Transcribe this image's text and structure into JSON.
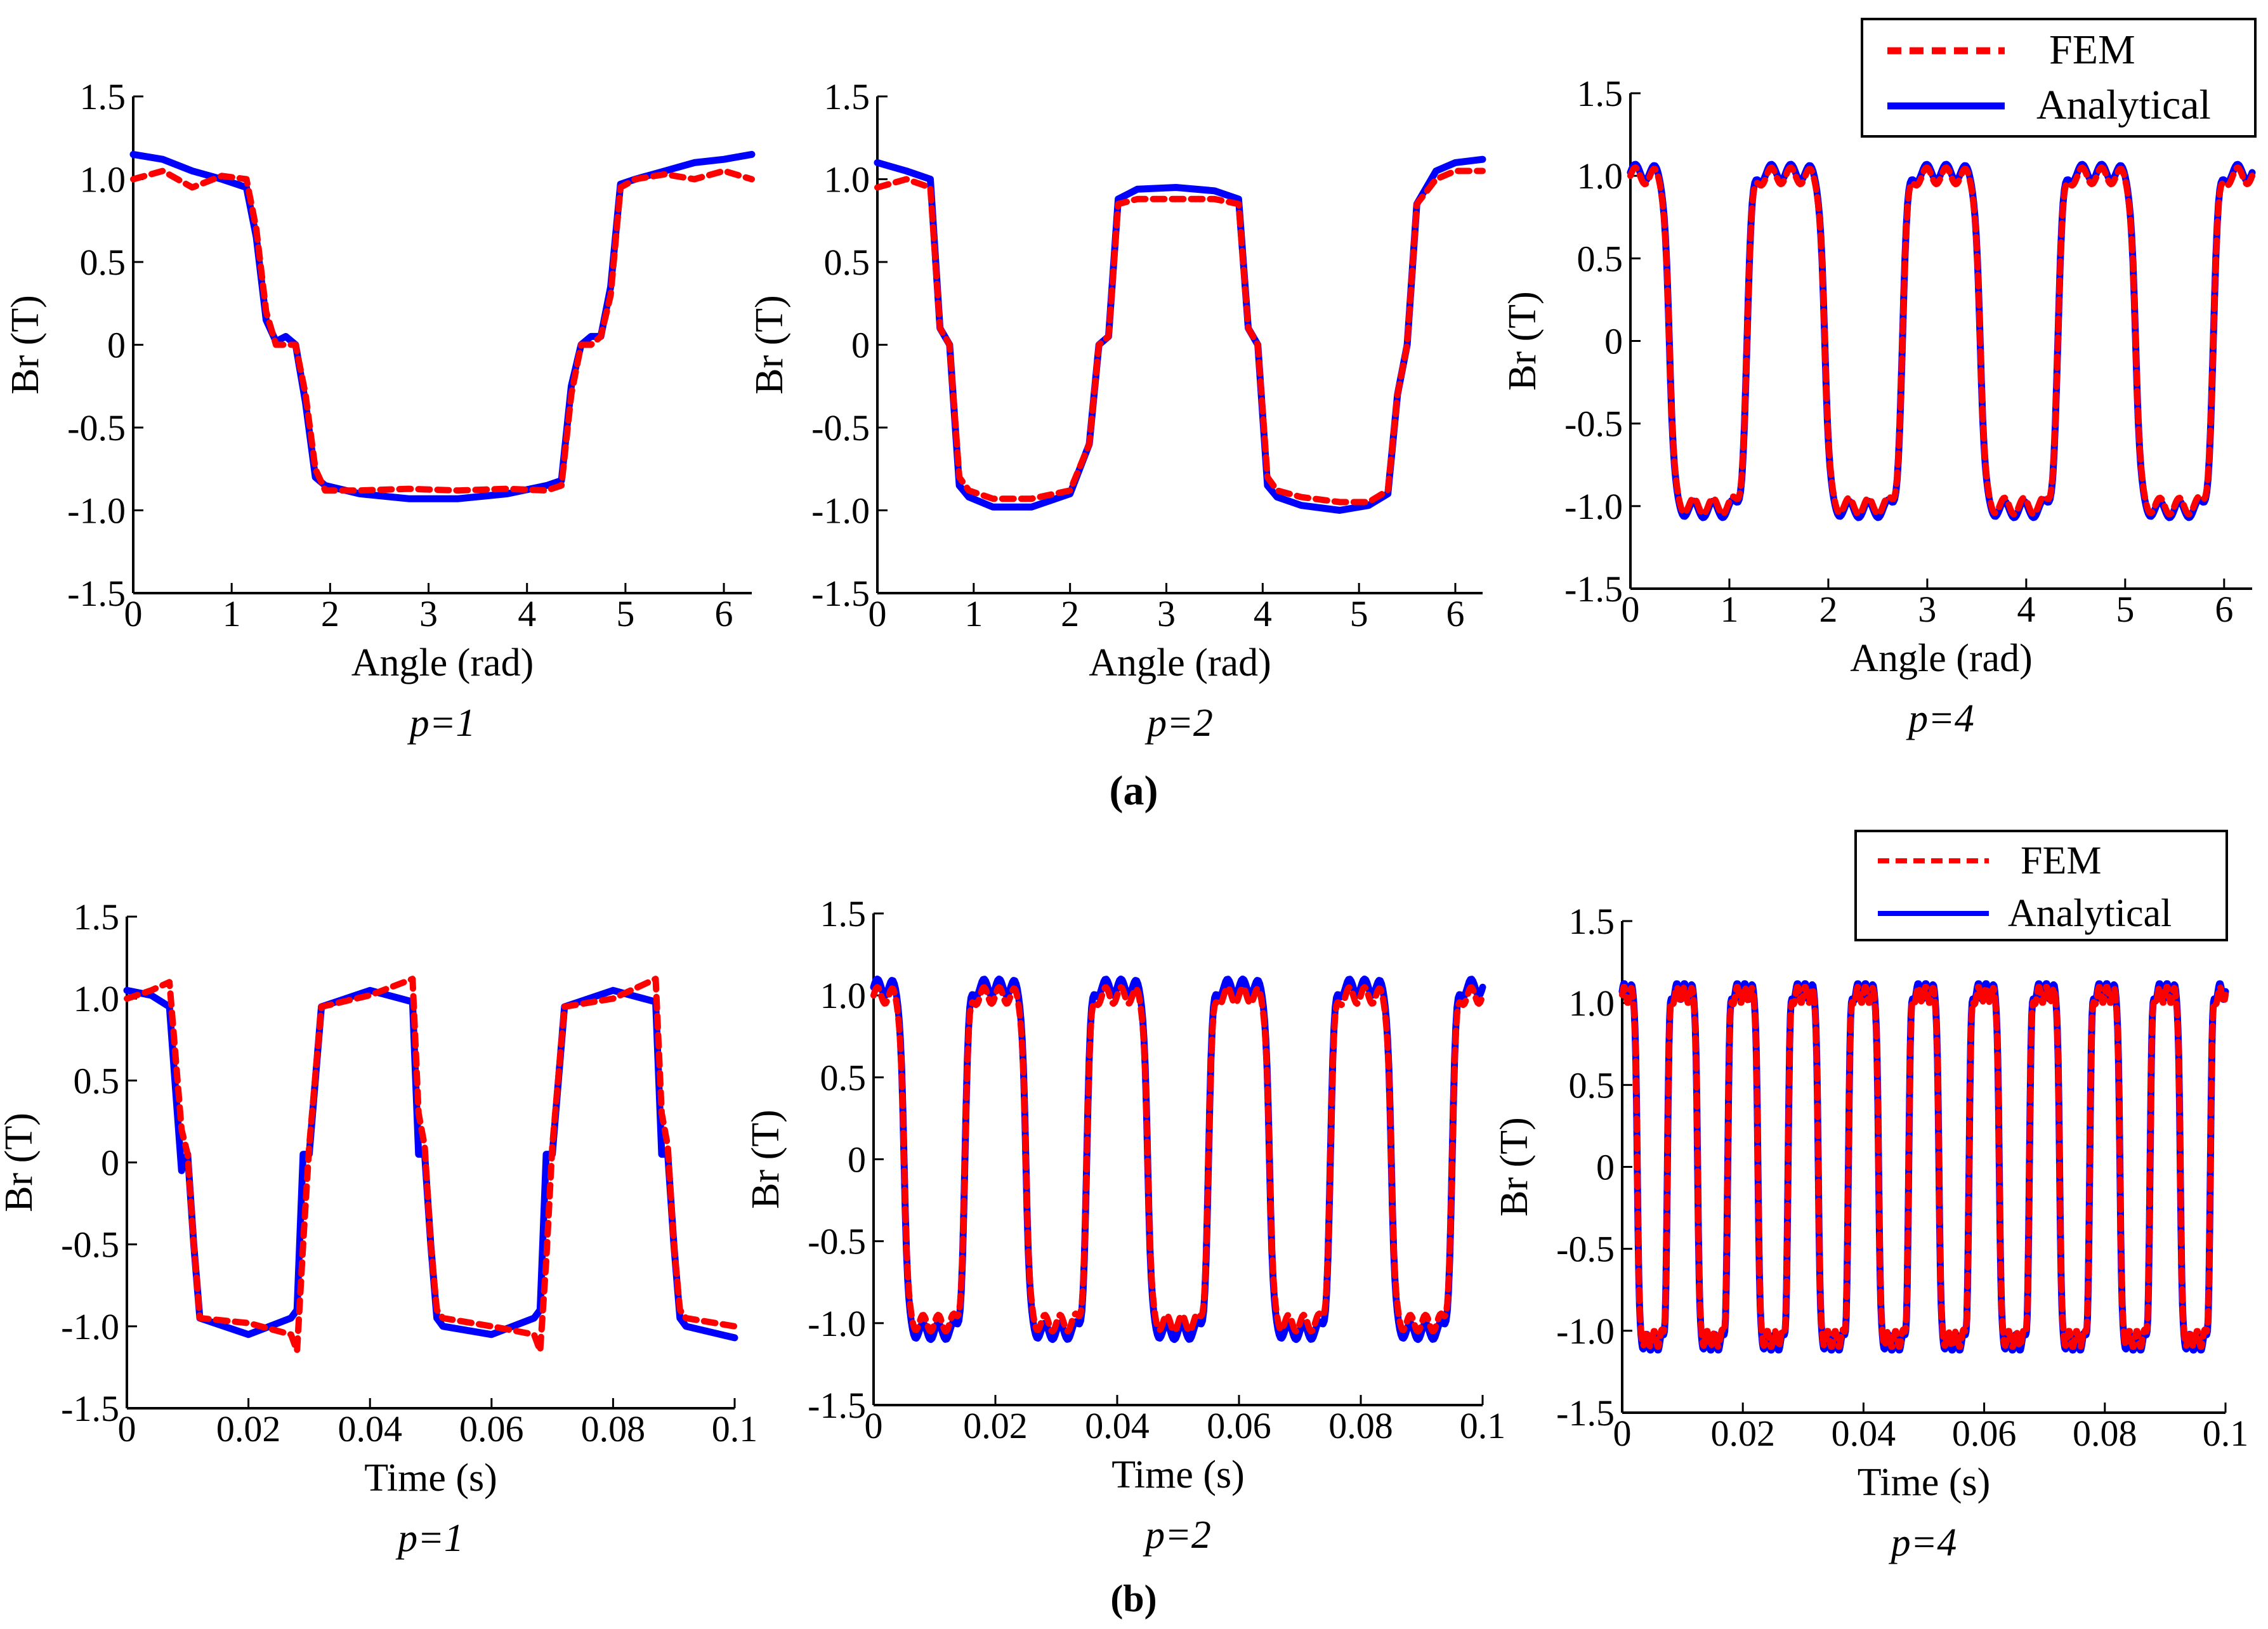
{
  "colors": {
    "fem": "#ff0000",
    "analytical": "#0000ff",
    "axis": "#000000"
  },
  "legend": {
    "fem": "FEM",
    "analytical": "Analytical"
  },
  "row_labels": [
    "(a)",
    "(b)"
  ],
  "chart_data": [
    {
      "type": "line",
      "title": "",
      "subplot_label": "p=1",
      "xlabel": "Angle (rad)",
      "ylabel": "Br (T)",
      "xlim": [
        0,
        6.2832
      ],
      "ylim": [
        -1.5,
        1.5
      ],
      "xticks": [
        0,
        1,
        2,
        3,
        4,
        5,
        6
      ],
      "yticks": [
        -1.5,
        -1.0,
        -0.5,
        0,
        0.5,
        1.0,
        1.5
      ],
      "ytick_labels": [
        "-1.5",
        "-1.0",
        "-0.5",
        "0",
        "0.5",
        "1.0",
        "1.5"
      ],
      "legend_position": "none",
      "series": [
        {
          "name": "FEM",
          "style": "dashed",
          "x": [
            0,
            0.3,
            0.6,
            0.9,
            1.15,
            1.25,
            1.35,
            1.45,
            1.55,
            1.65,
            1.75,
            1.85,
            1.95,
            2.3,
            2.8,
            3.3,
            3.8,
            4.2,
            4.35,
            4.45,
            4.55,
            4.65,
            4.75,
            4.85,
            4.95,
            5.1,
            5.4,
            5.7,
            6.0,
            6.2832
          ],
          "y": [
            1.0,
            1.05,
            0.95,
            1.02,
            1.0,
            0.7,
            0.2,
            0.0,
            0.0,
            0.0,
            -0.3,
            -0.75,
            -0.88,
            -0.88,
            -0.87,
            -0.88,
            -0.87,
            -0.88,
            -0.85,
            -0.3,
            0.0,
            0.0,
            0.05,
            0.3,
            0.95,
            1.0,
            1.03,
            1.0,
            1.05,
            1.0
          ]
        },
        {
          "name": "Analytical",
          "style": "solid",
          "x": [
            0,
            0.3,
            0.6,
            0.9,
            1.15,
            1.25,
            1.35,
            1.45,
            1.55,
            1.65,
            1.75,
            1.85,
            1.95,
            2.3,
            2.8,
            3.3,
            3.8,
            4.2,
            4.35,
            4.45,
            4.55,
            4.65,
            4.75,
            4.85,
            4.95,
            5.1,
            5.4,
            5.7,
            6.0,
            6.2832
          ],
          "y": [
            1.15,
            1.12,
            1.05,
            1.0,
            0.95,
            0.65,
            0.15,
            0.02,
            0.05,
            0.0,
            -0.35,
            -0.8,
            -0.85,
            -0.9,
            -0.93,
            -0.93,
            -0.9,
            -0.85,
            -0.82,
            -0.25,
            0.0,
            0.05,
            0.05,
            0.35,
            0.97,
            1.0,
            1.05,
            1.1,
            1.12,
            1.15
          ]
        }
      ]
    },
    {
      "type": "line",
      "title": "",
      "subplot_label": "p=2",
      "xlabel": "Angle (rad)",
      "ylabel": "Br (T)",
      "xlim": [
        0,
        6.2832
      ],
      "ylim": [
        -1.5,
        1.5
      ],
      "xticks": [
        0,
        1,
        2,
        3,
        4,
        5,
        6
      ],
      "yticks": [
        -1.5,
        -1.0,
        -0.5,
        0,
        0.5,
        1.0,
        1.5
      ],
      "ytick_labels": [
        "-1.5",
        "-1.0",
        "-0.5",
        "0",
        "0.5",
        "1.0",
        "1.5"
      ],
      "legend_position": "none",
      "series": [
        {
          "name": "FEM",
          "style": "dashed",
          "x": [
            0,
            0.3,
            0.55,
            0.65,
            0.75,
            0.85,
            0.95,
            1.2,
            1.6,
            2.0,
            2.2,
            2.3,
            2.4,
            2.5,
            2.7,
            3.1,
            3.5,
            3.75,
            3.85,
            3.95,
            4.05,
            4.15,
            4.4,
            4.8,
            5.1,
            5.3,
            5.4,
            5.5,
            5.6,
            5.8,
            6.0,
            6.2832
          ],
          "y": [
            0.95,
            1.0,
            0.95,
            0.1,
            0.0,
            -0.8,
            -0.88,
            -0.93,
            -0.93,
            -0.88,
            -0.6,
            0.0,
            0.05,
            0.85,
            0.88,
            0.88,
            0.88,
            0.85,
            0.1,
            0.0,
            -0.8,
            -0.88,
            -0.92,
            -0.95,
            -0.95,
            -0.88,
            -0.3,
            0.0,
            0.85,
            1.0,
            1.05,
            1.05
          ]
        },
        {
          "name": "Analytical",
          "style": "solid",
          "x": [
            0,
            0.3,
            0.55,
            0.65,
            0.75,
            0.85,
            0.95,
            1.2,
            1.6,
            2.0,
            2.2,
            2.3,
            2.4,
            2.5,
            2.7,
            3.1,
            3.5,
            3.75,
            3.85,
            3.95,
            4.05,
            4.15,
            4.4,
            4.8,
            5.1,
            5.3,
            5.4,
            5.5,
            5.6,
            5.8,
            6.0,
            6.2832
          ],
          "y": [
            1.1,
            1.05,
            1.0,
            0.1,
            0.0,
            -0.85,
            -0.92,
            -0.98,
            -0.98,
            -0.9,
            -0.6,
            0.0,
            0.05,
            0.88,
            0.94,
            0.95,
            0.93,
            0.88,
            0.1,
            0.0,
            -0.85,
            -0.92,
            -0.97,
            -1.0,
            -0.97,
            -0.9,
            -0.3,
            0.0,
            0.85,
            1.05,
            1.1,
            1.12
          ]
        }
      ]
    },
    {
      "type": "line",
      "title": "",
      "subplot_label": "p=4",
      "xlabel": "Angle (rad)",
      "ylabel": "Br (T)",
      "xlim": [
        0,
        6.2832
      ],
      "ylim": [
        -1.5,
        1.5
      ],
      "xticks": [
        0,
        1,
        2,
        3,
        4,
        5,
        6
      ],
      "yticks": [
        -1.5,
        -1.0,
        -0.5,
        0,
        0.5,
        1.0,
        1.5
      ],
      "ytick_labels": [
        "-1.5",
        "-1.0",
        "-0.5",
        "0",
        "0.5",
        "1.0",
        "1.5"
      ],
      "legend_position": "top-right",
      "series": [
        {
          "name": "FEM",
          "style": "dashed",
          "shape": "square-wave",
          "periods": 4,
          "amplitude": 1.0,
          "samples": 480
        },
        {
          "name": "Analytical",
          "style": "solid",
          "shape": "square-wave",
          "periods": 4,
          "amplitude": 1.02,
          "samples": 480
        }
      ]
    },
    {
      "type": "line",
      "title": "",
      "subplot_label": "p=1",
      "xlabel": "Time (s)",
      "ylabel": "Br (T)",
      "xlim": [
        0,
        0.1
      ],
      "ylim": [
        -1.5,
        1.5
      ],
      "xticks": [
        0,
        0.02,
        0.04,
        0.06,
        0.08,
        0.1
      ],
      "xtick_labels": [
        "0",
        "0.02",
        "0.04",
        "0.06",
        "0.08",
        "0.1"
      ],
      "yticks": [
        -1.5,
        -1.0,
        -0.5,
        0,
        0.5,
        1.0,
        1.5
      ],
      "ytick_labels": [
        "-1.5",
        "-1.0",
        "-0.5",
        "0",
        "0.5",
        "1.0",
        "1.5"
      ],
      "legend_position": "none",
      "series": [
        {
          "name": "FEM",
          "style": "dashed",
          "x": [
            0,
            0.004,
            0.007,
            0.009,
            0.01,
            0.011,
            0.012,
            0.02,
            0.027,
            0.028,
            0.029,
            0.03,
            0.032,
            0.04,
            0.047,
            0.048,
            0.049,
            0.05,
            0.051,
            0.052,
            0.06,
            0.067,
            0.068,
            0.069,
            0.07,
            0.072,
            0.08,
            0.087,
            0.088,
            0.089,
            0.09,
            0.091,
            0.092,
            0.1
          ],
          "y": [
            1.0,
            1.05,
            1.1,
            0.2,
            0.05,
            -0.5,
            -0.95,
            -0.98,
            -1.05,
            -1.15,
            -0.5,
            0.1,
            0.95,
            1.02,
            1.12,
            0.3,
            0.1,
            -0.5,
            -0.9,
            -0.95,
            -1.0,
            -1.05,
            -1.15,
            -0.6,
            0.1,
            0.95,
            1.0,
            1.12,
            0.3,
            0.1,
            -0.5,
            -0.9,
            -0.95,
            -1.0
          ]
        },
        {
          "name": "Analytical",
          "style": "solid",
          "x": [
            0,
            0.004,
            0.007,
            0.009,
            0.01,
            0.011,
            0.012,
            0.02,
            0.027,
            0.028,
            0.029,
            0.03,
            0.032,
            0.04,
            0.047,
            0.048,
            0.049,
            0.05,
            0.051,
            0.052,
            0.06,
            0.067,
            0.068,
            0.069,
            0.07,
            0.072,
            0.08,
            0.087,
            0.088,
            0.089,
            0.09,
            0.091,
            0.092,
            0.1
          ],
          "y": [
            1.05,
            1.02,
            0.95,
            -0.05,
            0.05,
            -0.5,
            -0.95,
            -1.05,
            -0.95,
            -0.9,
            0.05,
            0.05,
            0.95,
            1.05,
            0.98,
            0.05,
            0.05,
            -0.5,
            -0.95,
            -1.0,
            -1.05,
            -0.95,
            -0.9,
            0.05,
            0.05,
            0.95,
            1.05,
            0.98,
            0.05,
            0.05,
            -0.5,
            -0.95,
            -1.0,
            -1.07
          ]
        }
      ]
    },
    {
      "type": "line",
      "title": "",
      "subplot_label": "p=2",
      "xlabel": "Time (s)",
      "ylabel": "Br (T)",
      "xlim": [
        0,
        0.1
      ],
      "ylim": [
        -1.5,
        1.5
      ],
      "xticks": [
        0,
        0.02,
        0.04,
        0.06,
        0.08,
        0.1
      ],
      "xtick_labels": [
        "0",
        "0.02",
        "0.04",
        "0.06",
        "0.08",
        "0.1"
      ],
      "yticks": [
        -1.5,
        -1.0,
        -0.5,
        0,
        0.5,
        1.0,
        1.5
      ],
      "ytick_labels": [
        "-1.5",
        "-1.0",
        "-0.5",
        "0",
        "0.5",
        "1.0",
        "1.5"
      ],
      "legend_position": "none",
      "series": [
        {
          "name": "FEM",
          "style": "dashed",
          "shape": "square-wave",
          "periods": 5,
          "amplitude": 1.0,
          "samples": 500
        },
        {
          "name": "Analytical",
          "style": "solid",
          "shape": "square-wave",
          "periods": 5,
          "amplitude": 1.05,
          "samples": 500
        }
      ]
    },
    {
      "type": "line",
      "title": "",
      "subplot_label": "p=4",
      "xlabel": "Time (s)",
      "ylabel": "Br (T)",
      "xlim": [
        0,
        0.1
      ],
      "ylim": [
        -1.5,
        1.5
      ],
      "xticks": [
        0,
        0.02,
        0.04,
        0.06,
        0.08,
        0.1
      ],
      "xtick_labels": [
        "0",
        "0.02",
        "0.04",
        "0.06",
        "0.08",
        "0.1"
      ],
      "yticks": [
        -1.5,
        -1.0,
        -0.5,
        0,
        0.5,
        1.0,
        1.5
      ],
      "ytick_labels": [
        "-1.5",
        "-1.0",
        "-0.5",
        "0",
        "0.5",
        "1.0",
        "1.5"
      ],
      "legend_position": "top-right",
      "series": [
        {
          "name": "FEM",
          "style": "dashed",
          "shape": "square-wave",
          "periods": 10,
          "amplitude": 1.05,
          "samples": 800
        },
        {
          "name": "Analytical",
          "style": "solid",
          "shape": "square-wave",
          "periods": 10,
          "amplitude": 1.07,
          "samples": 800
        }
      ]
    }
  ]
}
